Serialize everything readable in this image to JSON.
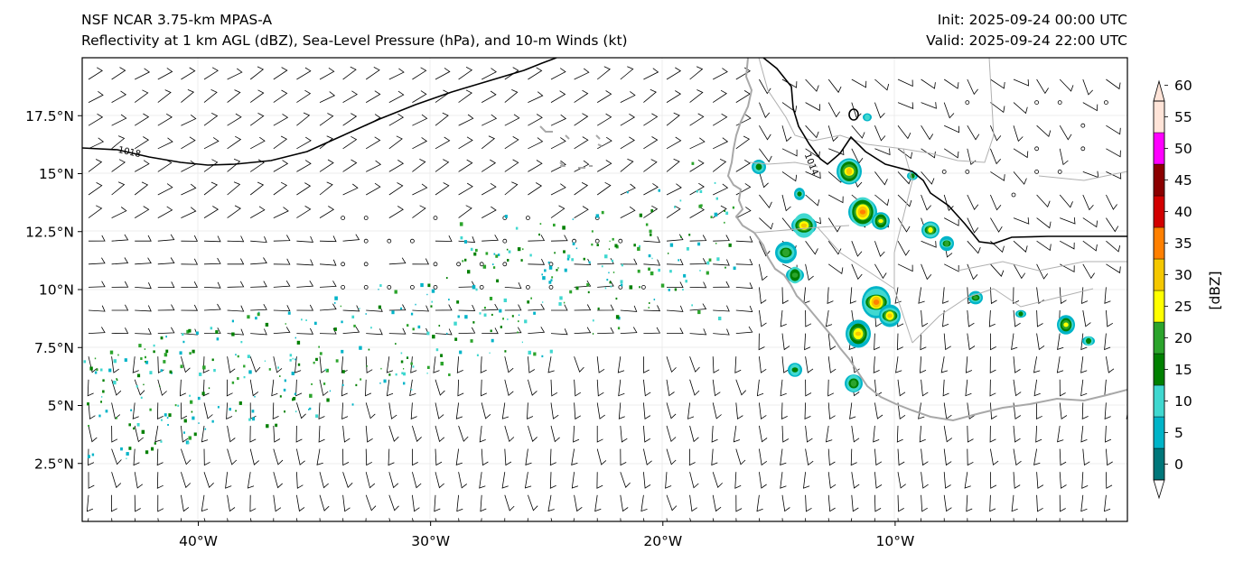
{
  "header": {
    "title_line1": "NSF NCAR 3.75-km MPAS-A",
    "title_line2": "Reflectivity at 1 km AGL (dBZ), Sea-Level Pressure (hPa), and 10-m Winds (kt)",
    "init": "Init: 2025-09-24 00:00 UTC",
    "valid": "Valid: 2025-09-24 22:00 UTC"
  },
  "map": {
    "lon_range": [
      -45,
      0
    ],
    "lat_range": [
      0,
      20
    ],
    "lat_ticks": [
      {
        "value": 17.5,
        "label": "17.5°N"
      },
      {
        "value": 15,
        "label": "15°N"
      },
      {
        "value": 12.5,
        "label": "12.5°N"
      },
      {
        "value": 10,
        "label": "10°N"
      },
      {
        "value": 7.5,
        "label": "7.5°N"
      },
      {
        "value": 5,
        "label": "5°N"
      },
      {
        "value": 2.5,
        "label": "2.5°N"
      }
    ],
    "lon_ticks": [
      {
        "value": -40,
        "label": "40°W"
      },
      {
        "value": -30,
        "label": "30°W"
      },
      {
        "value": -20,
        "label": "20°W"
      },
      {
        "value": -10,
        "label": "10°W"
      }
    ],
    "isobars": [
      {
        "label": "1018",
        "label_lon": -42.5,
        "label_lat": 15.8
      },
      {
        "label": "1014",
        "label_lon": -11.8,
        "label_lat": 15.5
      }
    ]
  },
  "colorbar": {
    "label": "[dBZ]",
    "ticks": [
      "0",
      "5",
      "10",
      "15",
      "20",
      "25",
      "30",
      "35",
      "40",
      "45",
      "50",
      "55",
      "60"
    ],
    "colors": [
      "#ffffff",
      "#00777a",
      "#00b4c8",
      "#40d8d0",
      "#008000",
      "#2ca42c",
      "#ffff00",
      "#f5c800",
      "#ff8000",
      "#d20000",
      "#8b0000",
      "#ff00ff",
      "#ffe4d8"
    ]
  }
}
